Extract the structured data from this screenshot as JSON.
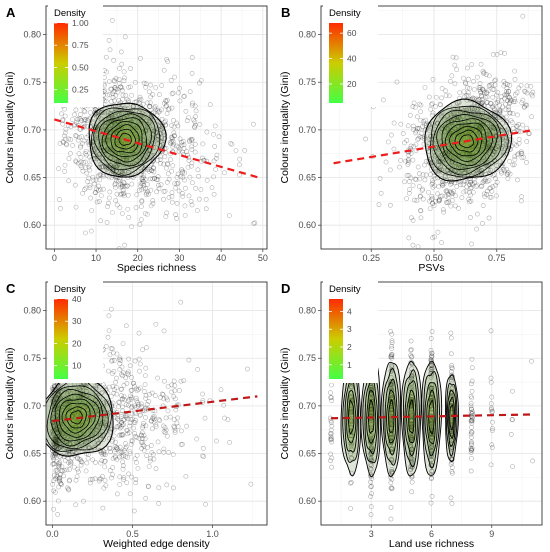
{
  "chart_data": [
    {
      "panel": "A",
      "type": "scatter",
      "xlabel": "Species richness",
      "ylabel": "Colours inequality (Gini)",
      "xlim": [
        -2,
        51
      ],
      "ylim": [
        0.575,
        0.83
      ],
      "xticks": [
        0,
        10,
        20,
        30,
        40,
        50
      ],
      "yticks": [
        0.6,
        0.65,
        0.7,
        0.75,
        0.8
      ],
      "xtick_labels": [
        "0",
        "10",
        "20",
        "30",
        "40",
        "50"
      ],
      "ytick_labels": [
        "0.60",
        "0.65",
        "0.70",
        "0.75",
        "0.80"
      ],
      "grid": true,
      "legend": {
        "title": "Density",
        "position": "top-left",
        "range": [
          0.1,
          1.0
        ],
        "ticks": [
          0.25,
          0.5,
          0.75,
          1.0
        ],
        "tick_labels": [
          "0.25",
          "0.50",
          "0.75",
          "1.00"
        ]
      },
      "cloud": {
        "center": [
          17,
          0.688
        ],
        "spread": [
          7,
          0.035
        ],
        "skew_x": 0.8,
        "corr": -0.15,
        "n": 1100,
        "xmin": 1,
        "xmax": 49
      },
      "density_center": [
        17,
        0.69
      ],
      "density_radius": [
        8.5,
        0.042
      ],
      "fit_line": {
        "x": [
          0,
          49
        ],
        "y": [
          0.711,
          0.65
        ]
      }
    },
    {
      "panel": "B",
      "type": "scatter",
      "xlabel": "PSVs",
      "ylabel": "Colours inequality (Gini)",
      "xlim": [
        0.05,
        0.93
      ],
      "ylim": [
        0.575,
        0.83
      ],
      "xticks": [
        0.25,
        0.5,
        0.75
      ],
      "yticks": [
        0.6,
        0.65,
        0.7,
        0.75,
        0.8
      ],
      "xtick_labels": [
        "0.25",
        "0.50",
        "0.75"
      ],
      "ytick_labels": [
        "0.60",
        "0.65",
        "0.70",
        "0.75",
        "0.80"
      ],
      "grid": true,
      "legend": {
        "title": "Density",
        "position": "top-left",
        "range": [
          5,
          68
        ],
        "ticks": [
          20,
          40,
          60
        ],
        "tick_labels": [
          "20",
          "40",
          "60"
        ]
      },
      "cloud": {
        "center": [
          0.64,
          0.688
        ],
        "spread": [
          0.11,
          0.035
        ],
        "skew_x": -0.3,
        "corr": 0.35,
        "n": 1100,
        "xmin": 0.1,
        "xmax": 0.9
      },
      "density_center": [
        0.63,
        0.688
      ],
      "density_radius": [
        0.16,
        0.045
      ],
      "fit_line": {
        "x": [
          0.1,
          0.9
        ],
        "y": [
          0.665,
          0.7
        ]
      }
    },
    {
      "panel": "C",
      "type": "scatter",
      "xlabel": "Weighted edge density",
      "ylabel": "Colours inequality (Gini)",
      "xlim": [
        -0.04,
        1.34
      ],
      "ylim": [
        0.575,
        0.83
      ],
      "xticks": [
        0.0,
        0.5,
        1.0
      ],
      "yticks": [
        0.6,
        0.65,
        0.7,
        0.75,
        0.8
      ],
      "xtick_labels": [
        "0.0",
        "0.5",
        "1.0"
      ],
      "ytick_labels": [
        "0.60",
        "0.65",
        "0.70",
        "0.75",
        "0.80"
      ],
      "grid": true,
      "legend": {
        "title": "Density",
        "position": "top-left",
        "range": [
          4,
          40
        ],
        "ticks": [
          10,
          20,
          30,
          40
        ],
        "tick_labels": [
          "10",
          "20",
          "30",
          "40"
        ]
      },
      "cloud": {
        "center": [
          0.18,
          0.686
        ],
        "spread": [
          0.17,
          0.037
        ],
        "skew_x": 1.6,
        "corr": 0.05,
        "n": 1100,
        "xmin": 0.0,
        "xmax": 1.28
      },
      "density_center": [
        0.15,
        0.688
      ],
      "density_radius": [
        0.22,
        0.045
      ],
      "fit_line": {
        "x": [
          0.0,
          1.28
        ],
        "y": [
          0.684,
          0.71
        ]
      }
    },
    {
      "panel": "D",
      "type": "scatter",
      "xlabel": "Land use richness",
      "ylabel": "Colours inequality (Gini)",
      "xlim": [
        0.5,
        11.5
      ],
      "ylim": [
        0.575,
        0.83
      ],
      "xticks": [
        3,
        6,
        9
      ],
      "yticks": [
        0.6,
        0.65,
        0.7,
        0.75,
        0.8
      ],
      "xtick_labels": [
        "3",
        "6",
        "9"
      ],
      "ytick_labels": [
        "0.60",
        "0.65",
        "0.70",
        "0.75",
        "0.80"
      ],
      "grid": true,
      "legend": {
        "title": "Density",
        "position": "top-left",
        "range": [
          0.2,
          4.7
        ],
        "ticks": [
          1,
          2,
          3,
          4
        ],
        "tick_labels": [
          "1",
          "2",
          "3",
          "4"
        ]
      },
      "columns": [
        1,
        2,
        3,
        4,
        5,
        6,
        7,
        8,
        9,
        10,
        11
      ],
      "column_counts": [
        25,
        80,
        150,
        150,
        150,
        140,
        90,
        40,
        15,
        5,
        2
      ],
      "column_sd": 0.035,
      "density_columns": [
        2,
        3,
        4,
        5,
        6,
        7
      ],
      "fit_line": {
        "x": [
          1,
          11
        ],
        "y": [
          0.687,
          0.691
        ]
      }
    }
  ]
}
